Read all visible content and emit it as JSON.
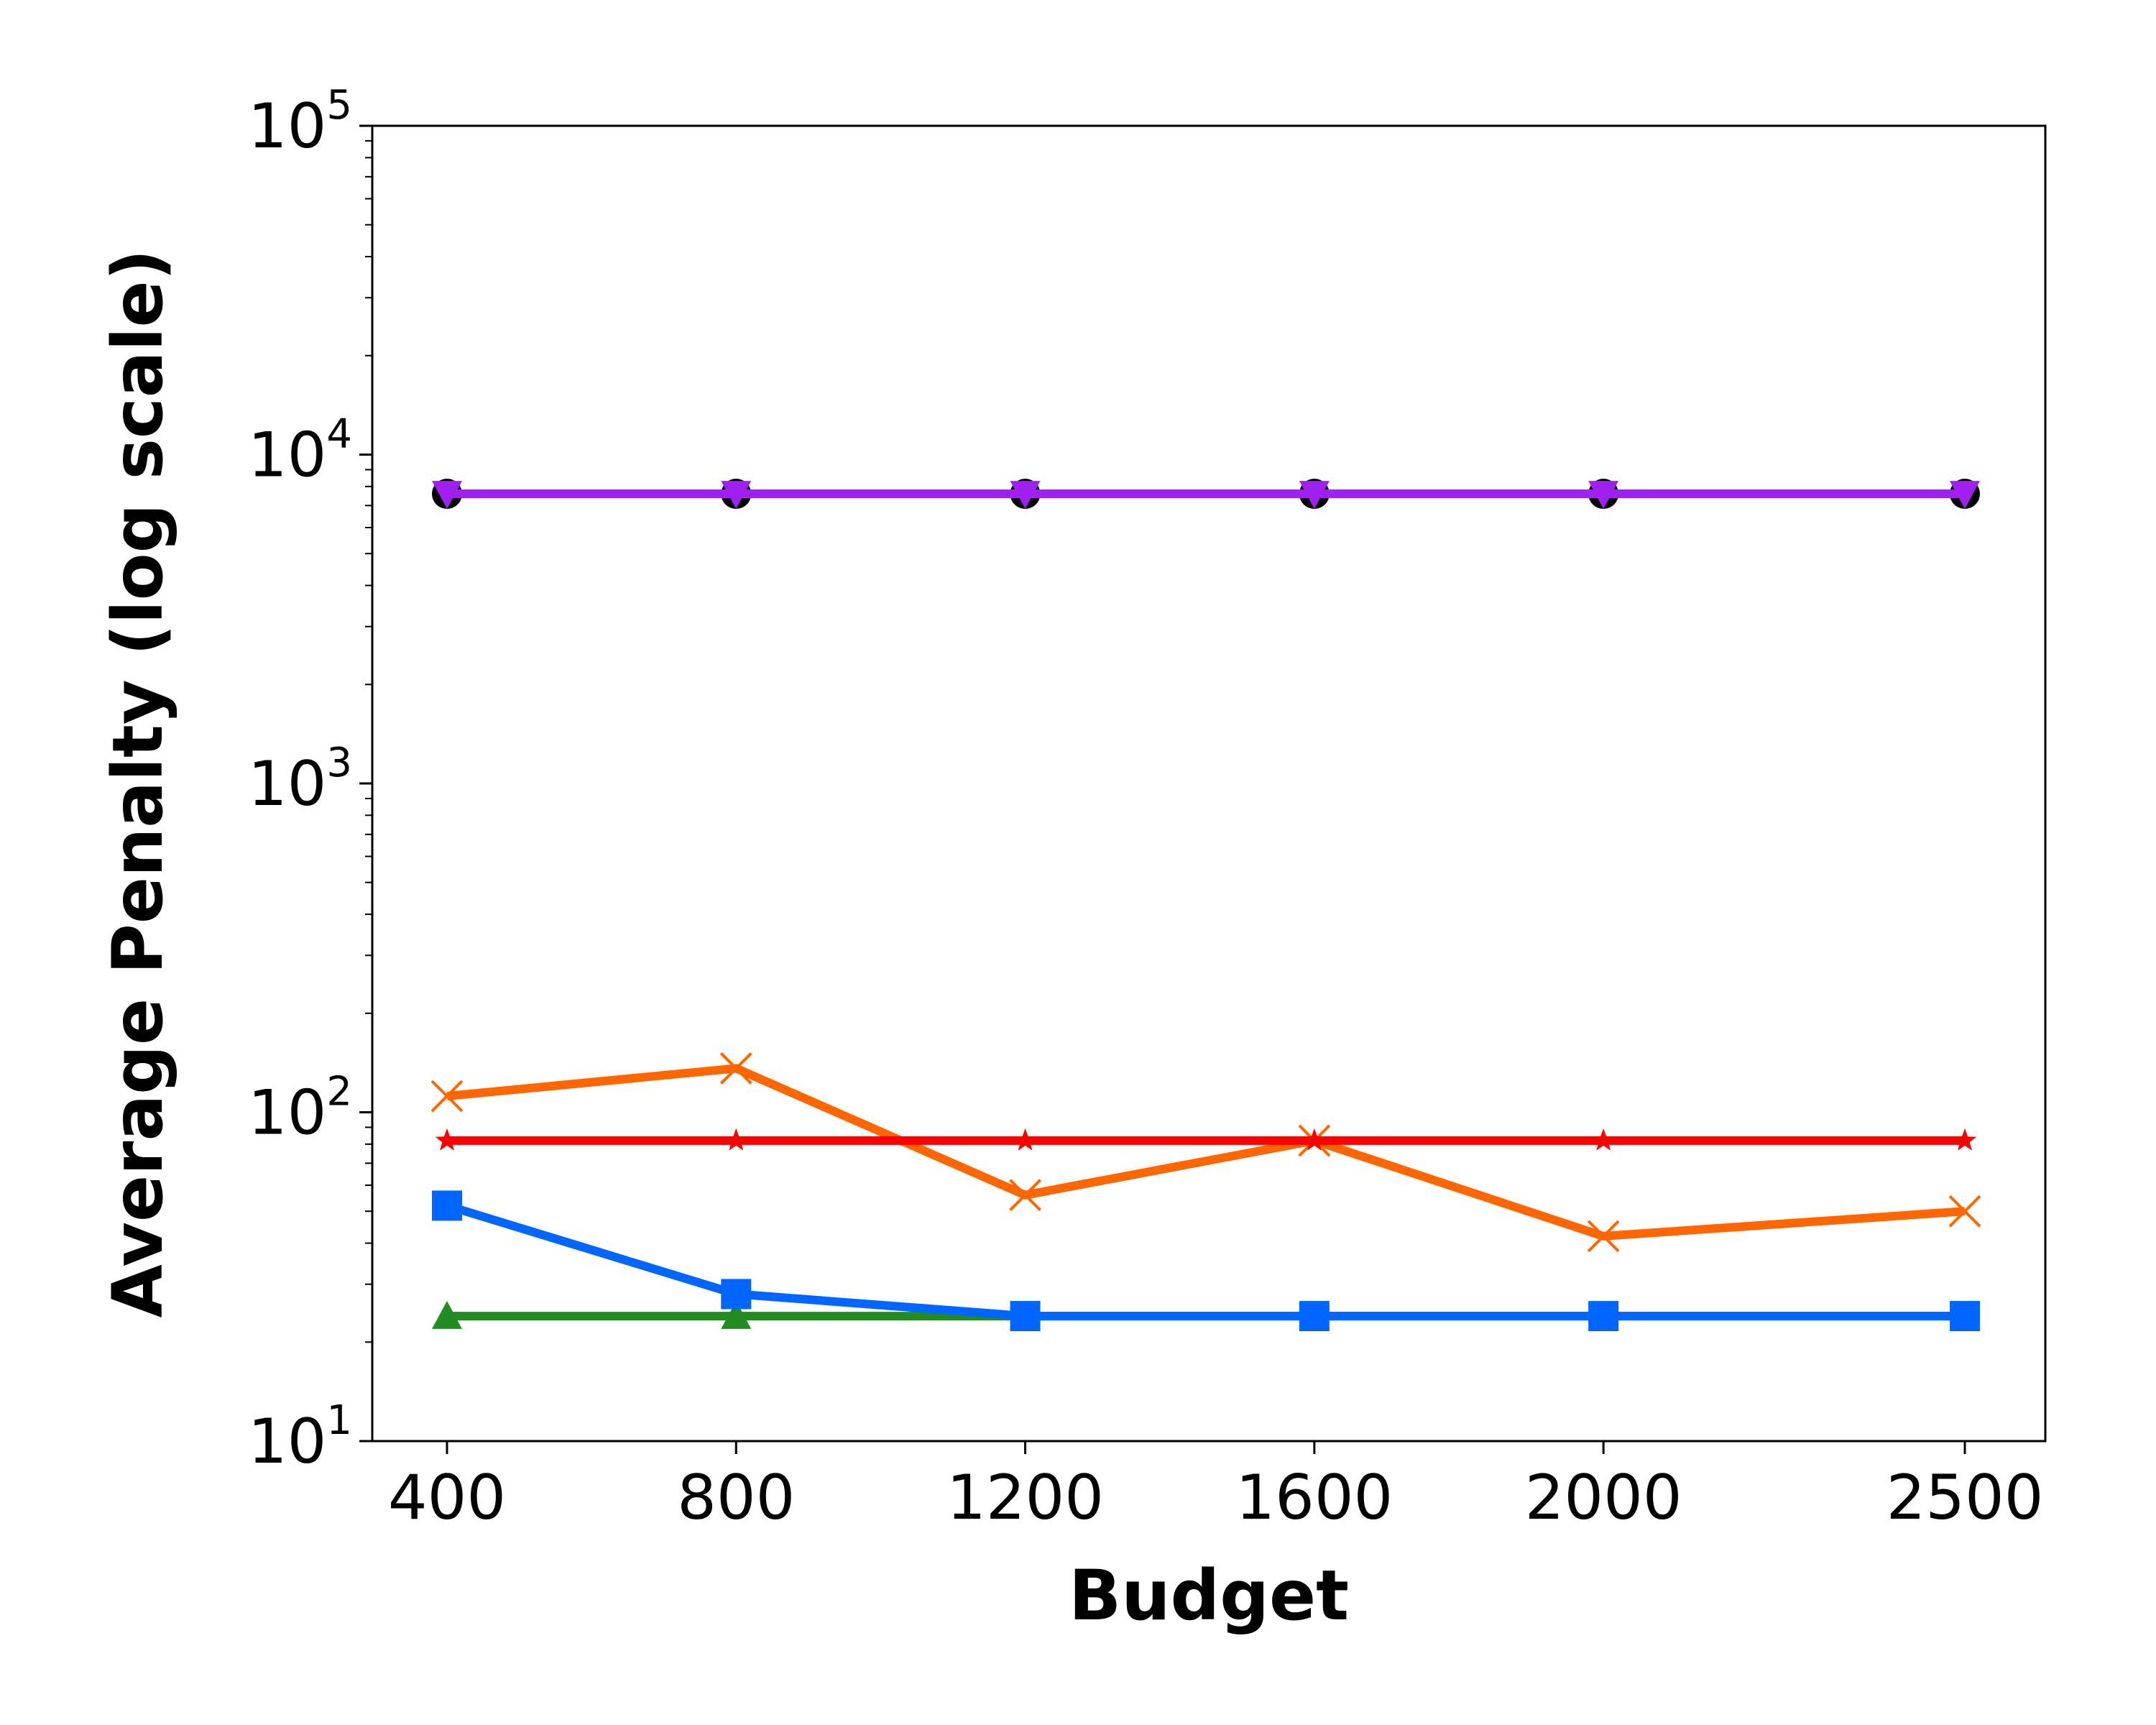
{
  "chart_data": {
    "type": "line",
    "xlabel": "Budget",
    "ylabel": "Average Penalty (log scale)",
    "x": [
      400,
      800,
      1200,
      1600,
      2000,
      2500
    ],
    "x_tick_labels": [
      "400",
      "800",
      "1200",
      "1600",
      "2000",
      "2500"
    ],
    "yscale": "log",
    "ylim": [
      10,
      100000
    ],
    "y_ticks": [
      {
        "value": 10,
        "base": "10",
        "exp": "1"
      },
      {
        "value": 100,
        "base": "10",
        "exp": "2"
      },
      {
        "value": 1000,
        "base": "10",
        "exp": "3"
      },
      {
        "value": 10000,
        "base": "10",
        "exp": "4"
      },
      {
        "value": 100000,
        "base": "10",
        "exp": "5"
      }
    ],
    "grid": false,
    "series": [
      {
        "color": "#000000",
        "marker": "circle",
        "values": [
          7600,
          7600,
          7600,
          7600,
          7600,
          7600
        ]
      },
      {
        "color": "#a020f0",
        "marker": "triangle-down",
        "values": [
          7600,
          7600,
          7600,
          7600,
          7600,
          7600
        ]
      },
      {
        "color": "#ff6600",
        "marker": "x",
        "values": [
          112,
          136,
          56,
          82,
          42,
          50
        ]
      },
      {
        "color": "#ff0000",
        "marker": "star",
        "values": [
          82,
          82,
          82,
          82,
          82,
          82
        ]
      },
      {
        "color": "#228b22",
        "marker": "triangle-up",
        "values": [
          24,
          24,
          24,
          24,
          24,
          24
        ]
      },
      {
        "color": "#0066ff",
        "marker": "square",
        "values": [
          52,
          28,
          24,
          24,
          24,
          24
        ]
      }
    ]
  }
}
